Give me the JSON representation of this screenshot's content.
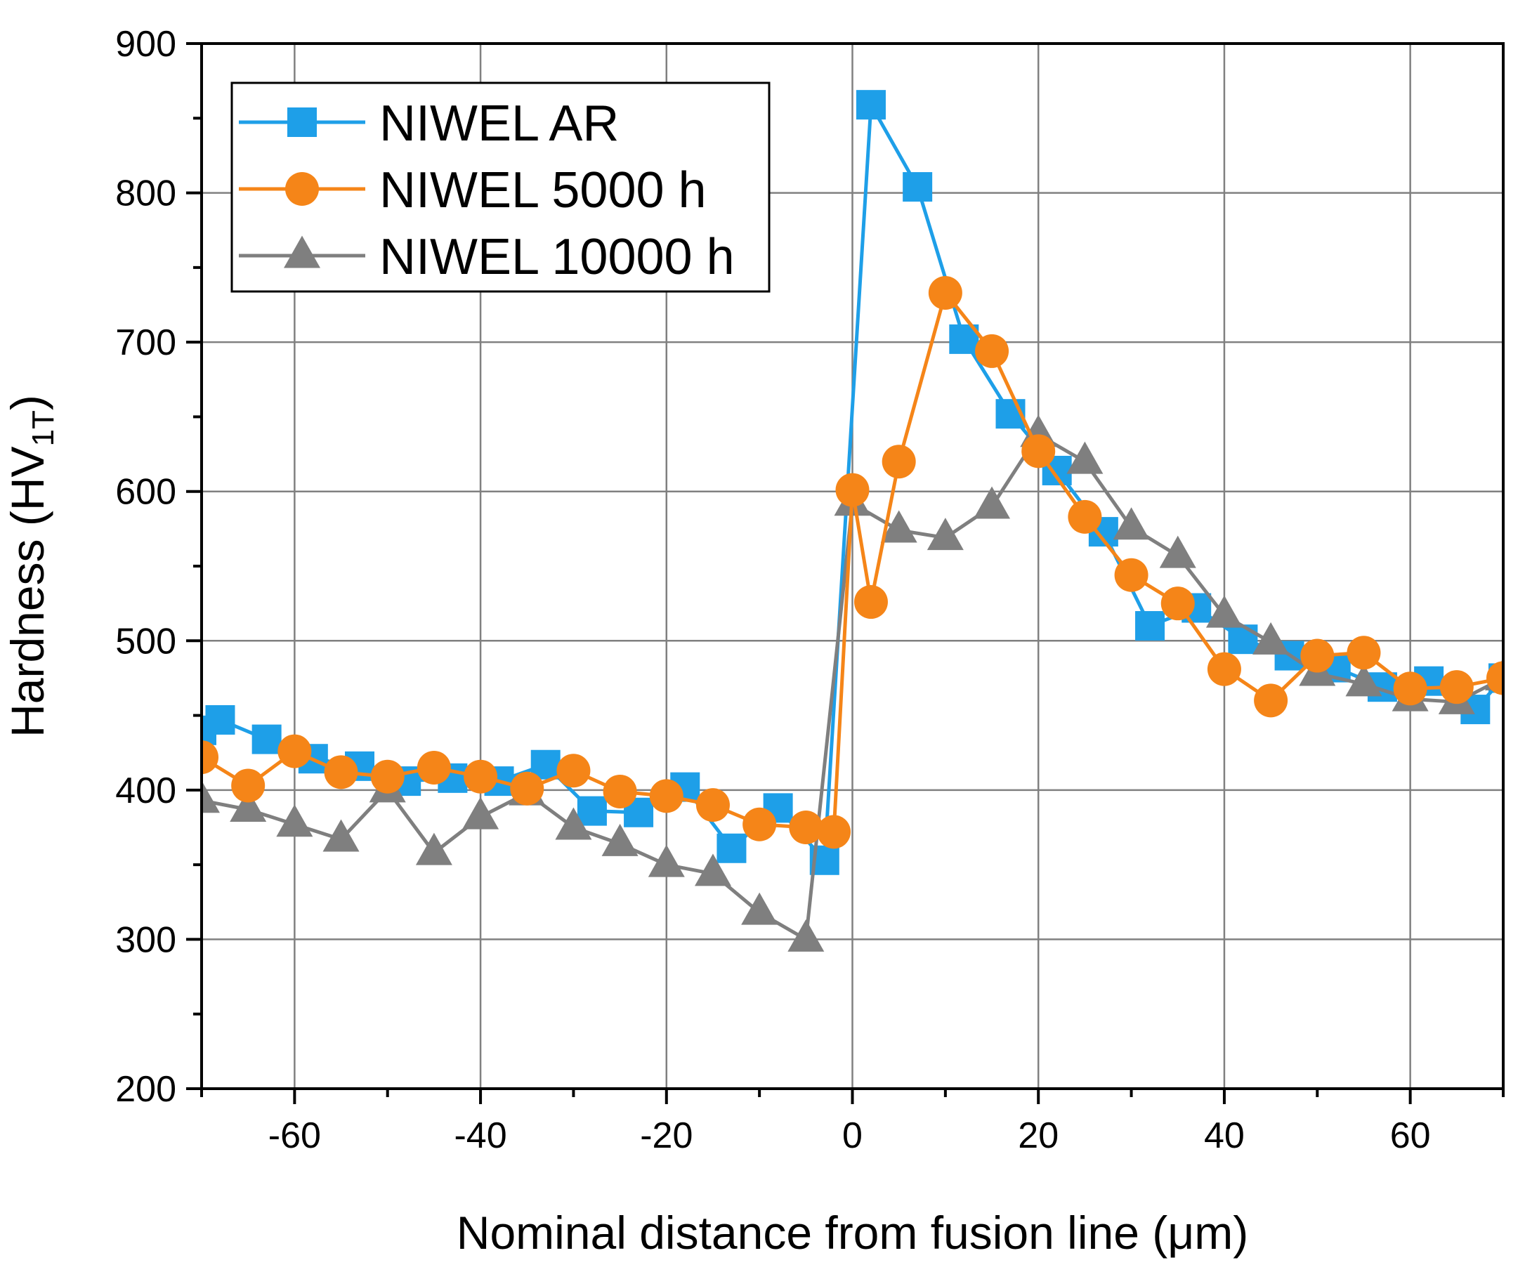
{
  "chart_data": {
    "type": "line",
    "title": "",
    "xlabel": "Nominal distance from fusion line (μm)",
    "ylabel": "Hardness (HV",
    "ylabel_sub": "1T",
    "ylabel_close": ")",
    "xlim": [
      -70,
      70
    ],
    "ylim": [
      200,
      900
    ],
    "xticks": [
      -60,
      -40,
      -20,
      0,
      20,
      40,
      60
    ],
    "yticks": [
      200,
      300,
      400,
      500,
      600,
      700,
      800,
      900
    ],
    "xtick_labels": [
      "-60",
      "-40",
      "-20",
      "0",
      "20",
      "40",
      "60"
    ],
    "ytick_labels": [
      "200",
      "300",
      "400",
      "500",
      "600",
      "700",
      "800",
      "900"
    ],
    "grid": true,
    "legend_position": "top-left",
    "series": [
      {
        "name": "NIWEL AR",
        "color": "#1e9fe8",
        "marker": "square",
        "x": [
          -70,
          -68,
          -63,
          -58,
          -53,
          -48,
          -43,
          -38,
          -33,
          -28,
          -23,
          -18,
          -13,
          -8,
          -3,
          2,
          7,
          12,
          17,
          22,
          27,
          32,
          37,
          42,
          47,
          52,
          57,
          62,
          67,
          70
        ],
        "y": [
          440,
          447,
          434,
          421,
          416,
          406,
          408,
          406,
          417,
          386,
          385,
          402,
          361,
          388,
          353,
          859,
          804,
          702,
          652,
          614,
          573,
          510,
          522,
          501,
          490,
          482,
          469,
          473,
          454,
          475
        ]
      },
      {
        "name": "NIWEL 5000 h",
        "color": "#f58518",
        "marker": "circle",
        "x": [
          -70,
          -65,
          -60,
          -55,
          -50,
          -45,
          -40,
          -35,
          -30,
          -25,
          -20,
          -15,
          -10,
          -5,
          -2,
          0,
          2,
          5,
          10,
          15,
          20,
          25,
          30,
          35,
          40,
          45,
          50,
          55,
          60,
          65,
          70
        ],
        "y": [
          422,
          403,
          426,
          412,
          409,
          415,
          409,
          401,
          413,
          399,
          396,
          390,
          377,
          375,
          372,
          601,
          526,
          620,
          733,
          694,
          627,
          583,
          544,
          525,
          481,
          460,
          490,
          492,
          468,
          469,
          475
        ]
      },
      {
        "name": "NIWEL 10000 h",
        "color": "#7f7f7f",
        "marker": "triangle",
        "x": [
          -70,
          -65,
          -60,
          -55,
          -50,
          -45,
          -40,
          -35,
          -30,
          -25,
          -20,
          -15,
          -10,
          -5,
          0,
          5,
          10,
          15,
          20,
          25,
          30,
          35,
          40,
          45,
          50,
          55,
          60,
          65,
          70
        ],
        "y": [
          393,
          387,
          377,
          367,
          400,
          358,
          382,
          398,
          375,
          364,
          350,
          344,
          318,
          300,
          592,
          574,
          569,
          590,
          638,
          620,
          576,
          557,
          517,
          499,
          478,
          471,
          461,
          459,
          475
        ]
      }
    ]
  }
}
